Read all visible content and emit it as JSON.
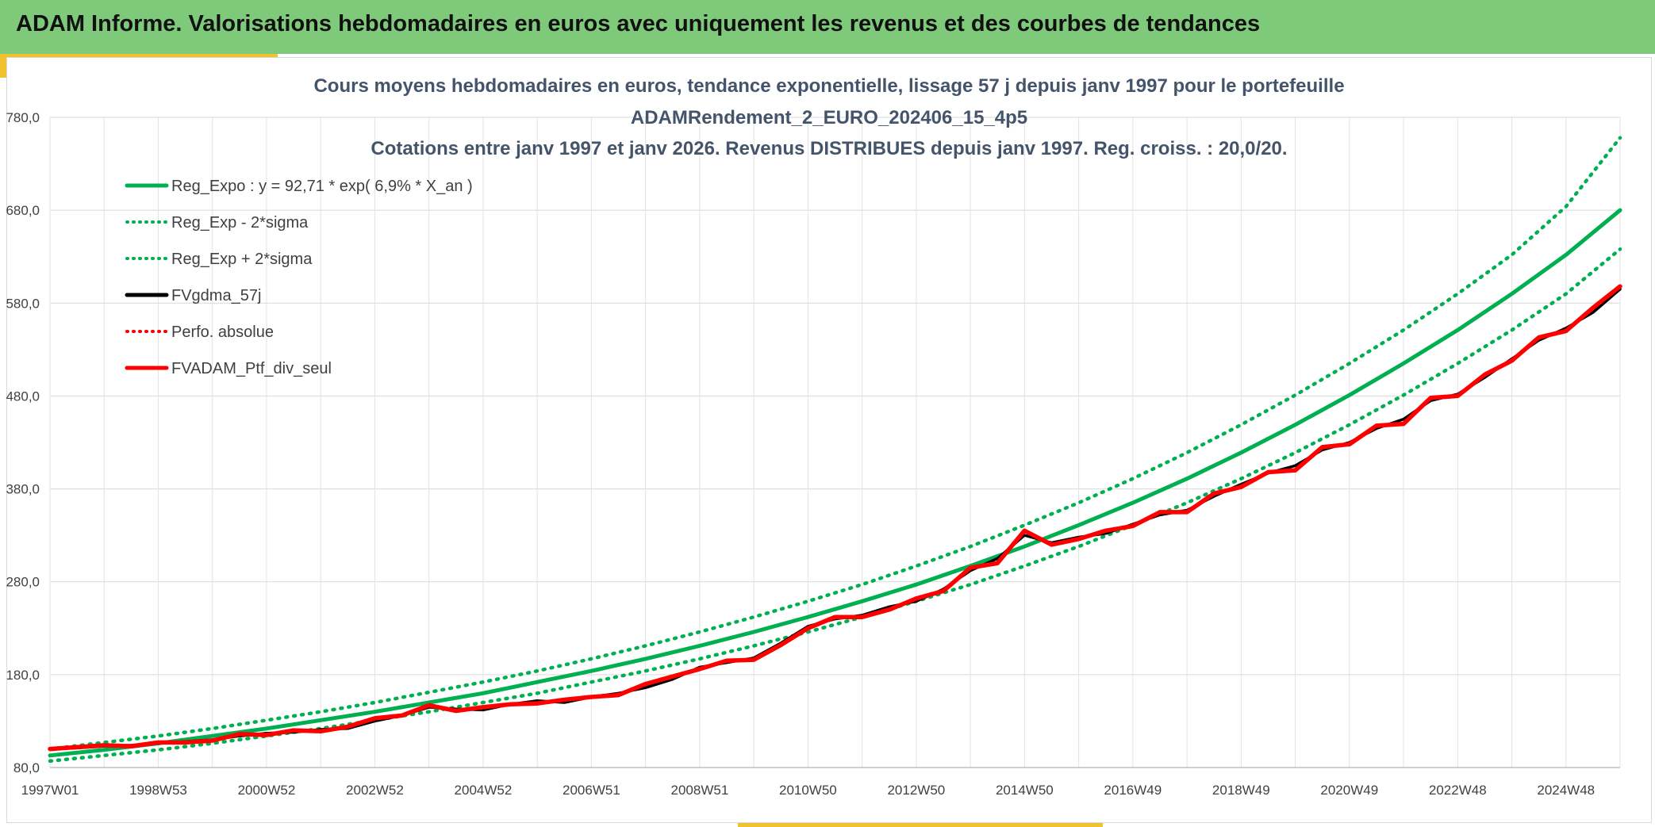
{
  "header": {
    "title": "ADAM Informe. Valorisations hebdomadaires en euros avec uniquement les revenus et des courbes de tendances"
  },
  "colors": {
    "header_bg": "#7fc97a",
    "accent": "#f2c12e",
    "trend": "#00b050",
    "ptf": "#ff0000",
    "smooth": "#000000"
  },
  "chart_data": {
    "type": "line",
    "title_lines": [
      "Cours moyens hebdomadaires en euros, tendance exponentielle, lissage 57 j depuis janv 1997 pour le portefeuille",
      "ADAMRendement_2_EURO_202406_15_4p5",
      "Cotations entre janv 1997 et janv 2026. Revenus DISTRIBUES depuis janv 1997. Reg. croiss. : 20,0/20."
    ],
    "ylim": [
      80,
      780
    ],
    "xlim": [
      1997.0,
      2026.0
    ],
    "y_ticks": [
      "80,0",
      "180,0",
      "280,0",
      "380,0",
      "480,0",
      "580,0",
      "680,0",
      "780,0"
    ],
    "x_tick_labels": [
      "1997W01",
      "1998W53",
      "2000W52",
      "2002W52",
      "2004W52",
      "2006W51",
      "2008W51",
      "2010W50",
      "2012W50",
      "2014W50",
      "2016W49",
      "2018W49",
      "2020W49",
      "2022W48",
      "2024W48"
    ],
    "grid": true,
    "legend": [
      {
        "label": "Reg_Expo : y = 92,71 * exp( 6,9% *  X_an )",
        "color": "#00b050",
        "style": "solid"
      },
      {
        "label": "Reg_Exp - 2*sigma",
        "color": "#00b050",
        "style": "dotted"
      },
      {
        "label": "Reg_Exp + 2*sigma",
        "color": "#00b050",
        "style": "dotted"
      },
      {
        "label": "FVgdma_57j",
        "color": "#000000",
        "style": "solid"
      },
      {
        "label": "Perfo. absolue",
        "color": "#ff0000",
        "style": "dotted"
      },
      {
        "label": "FVADAM_Ptf_div_seul",
        "color": "#ff0000",
        "style": "solid"
      }
    ],
    "series": [
      {
        "name": "Reg_Expo",
        "x": [
          1997,
          1998,
          1999,
          2000,
          2001,
          2002,
          2003,
          2004,
          2005,
          2006,
          2007,
          2008,
          2009,
          2010,
          2011,
          2012,
          2013,
          2014,
          2015,
          2016,
          2017,
          2018,
          2019,
          2020,
          2021,
          2022,
          2023,
          2024,
          2025,
          2026
        ],
        "values": [
          93,
          99,
          106,
          114,
          122,
          131,
          140,
          150,
          160,
          172,
          184,
          197,
          211,
          226,
          242,
          259,
          277,
          297,
          318,
          341,
          365,
          391,
          419,
          449,
          481,
          515,
          551,
          590,
          632,
          680
        ]
      },
      {
        "name": "Reg_Exp - 2*sigma",
        "x": [
          1997,
          1998,
          1999,
          2000,
          2001,
          2002,
          2003,
          2004,
          2005,
          2006,
          2007,
          2008,
          2009,
          2010,
          2011,
          2012,
          2013,
          2014,
          2015,
          2016,
          2017,
          2018,
          2019,
          2020,
          2021,
          2022,
          2023,
          2024,
          2025,
          2026
        ],
        "values": [
          87,
          93,
          99,
          106,
          114,
          122,
          131,
          140,
          150,
          160,
          172,
          184,
          197,
          211,
          226,
          242,
          259,
          277,
          297,
          318,
          341,
          365,
          391,
          419,
          449,
          481,
          515,
          551,
          590,
          638
        ]
      },
      {
        "name": "Reg_Exp + 2*sigma",
        "x": [
          1997,
          1998,
          1999,
          2000,
          2001,
          2002,
          2003,
          2004,
          2005,
          2006,
          2007,
          2008,
          2009,
          2010,
          2011,
          2012,
          2013,
          2014,
          2015,
          2016,
          2017,
          2018,
          2019,
          2020,
          2021,
          2022,
          2023,
          2024,
          2025,
          2026
        ],
        "values": [
          100,
          107,
          114,
          122,
          131,
          140,
          150,
          161,
          172,
          184,
          197,
          211,
          226,
          242,
          259,
          277,
          297,
          318,
          341,
          365,
          391,
          419,
          449,
          481,
          515,
          551,
          590,
          632,
          684,
          758
        ]
      },
      {
        "name": "FVgdma_57j",
        "x": [
          1997.0,
          1997.5,
          1998.0,
          1998.5,
          1999.0,
          1999.5,
          2000.0,
          2000.5,
          2001.0,
          2001.5,
          2002.0,
          2002.5,
          2003.0,
          2003.5,
          2004.0,
          2004.5,
          2005.0,
          2005.5,
          2006.0,
          2006.5,
          2007.0,
          2007.5,
          2008.0,
          2008.5,
          2009.0,
          2009.5,
          2010.0,
          2010.5,
          2011.0,
          2011.5,
          2012.0,
          2012.5,
          2013.0,
          2013.5,
          2014.0,
          2014.5,
          2015.0,
          2015.5,
          2016.0,
          2016.5,
          2017.0,
          2017.5,
          2018.0,
          2018.5,
          2019.0,
          2019.5,
          2020.0,
          2020.5,
          2021.0,
          2021.5,
          2022.0,
          2022.5,
          2023.0,
          2023.5,
          2024.0,
          2024.5,
          2025.0,
          2025.5,
          2026.0
        ],
        "values": [
          100,
          101,
          103,
          104,
          106,
          108,
          110,
          114,
          117,
          118,
          121,
          122,
          130,
          136,
          145,
          143,
          142,
          148,
          152,
          150,
          156,
          160,
          166,
          175,
          188,
          193,
          198,
          214,
          232,
          240,
          244,
          253,
          259,
          272,
          292,
          305,
          330,
          322,
          328,
          332,
          342,
          352,
          357,
          372,
          385,
          397,
          405,
          422,
          430,
          445,
          455,
          475,
          482,
          500,
          520,
          540,
          553,
          570,
          595
        ]
      },
      {
        "name": "FVADAM_Ptf_div_seul",
        "x": [
          1997.0,
          1997.5,
          1998.0,
          1998.5,
          1999.0,
          1999.5,
          2000.0,
          2000.5,
          2001.0,
          2001.5,
          2002.0,
          2002.5,
          2003.0,
          2003.5,
          2004.0,
          2004.5,
          2005.0,
          2005.5,
          2006.0,
          2006.5,
          2007.0,
          2007.5,
          2008.0,
          2008.5,
          2009.0,
          2009.5,
          2010.0,
          2010.5,
          2011.0,
          2011.5,
          2012.0,
          2012.5,
          2013.0,
          2013.5,
          2014.0,
          2014.5,
          2015.0,
          2015.5,
          2016.0,
          2016.5,
          2017.0,
          2017.5,
          2018.0,
          2018.5,
          2019.0,
          2019.5,
          2020.0,
          2020.5,
          2021.0,
          2021.5,
          2022.0,
          2022.5,
          2023.0,
          2023.5,
          2024.0,
          2024.5,
          2025.0,
          2025.5,
          2026.0
        ],
        "values": [
          100,
          102,
          104,
          103,
          107,
          107,
          109,
          116,
          115,
          120,
          119,
          124,
          133,
          136,
          147,
          141,
          145,
          148,
          149,
          153,
          156,
          158,
          170,
          178,
          186,
          195,
          196,
          212,
          230,
          242,
          242,
          250,
          262,
          270,
          295,
          300,
          335,
          320,
          326,
          335,
          340,
          355,
          355,
          375,
          382,
          398,
          400,
          425,
          428,
          448,
          450,
          478,
          480,
          503,
          518,
          543,
          550,
          575,
          598
        ]
      }
    ]
  }
}
